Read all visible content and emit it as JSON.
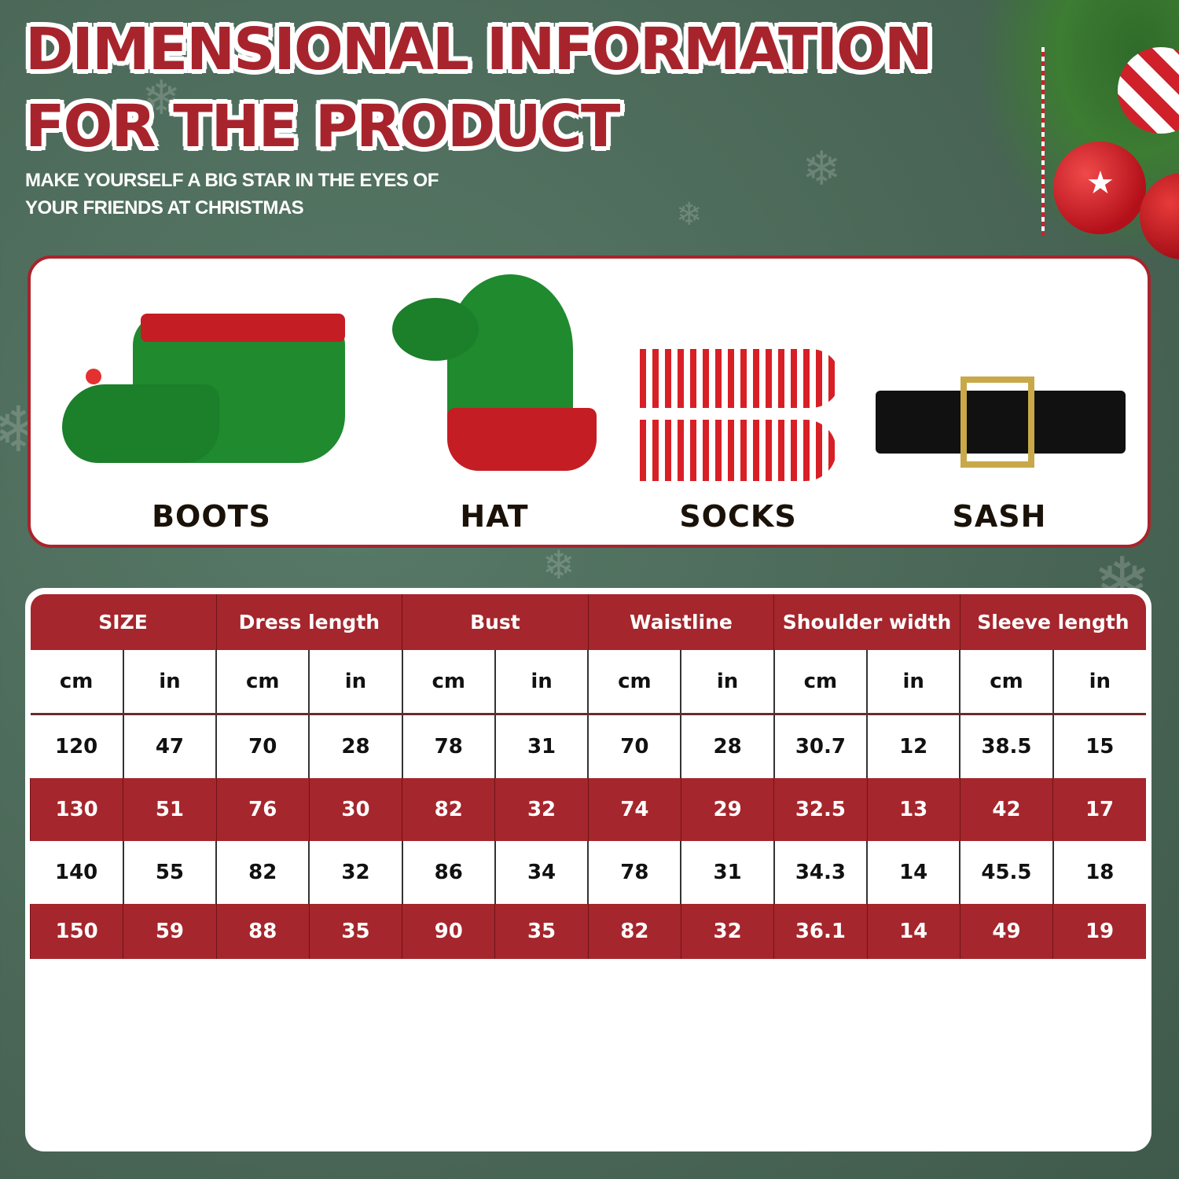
{
  "header": {
    "title_line1": "DIMENSIONAL INFORMATION",
    "title_line2": "FOR THE PRODUCT",
    "subtitle_line1": "MAKE YOURSELF A BIG STAR IN THE EYES OF",
    "subtitle_line2": "YOUR FRIENDS AT CHRISTMAS"
  },
  "colors": {
    "brand_red": "#a5262c",
    "background_green": "#4a6656"
  },
  "products": [
    {
      "label": "BOOTS",
      "icon": "elf-boots-image"
    },
    {
      "label": "HAT",
      "icon": "elf-hat-image"
    },
    {
      "label": "SOCKS",
      "icon": "striped-socks-image"
    },
    {
      "label": "SASH",
      "icon": "black-belt-image"
    }
  ],
  "size_table": {
    "headers": [
      "SIZE",
      "Dress length",
      "Bust",
      "Waistline",
      "Shoulder width",
      "Sleeve length"
    ],
    "units": [
      "cm",
      "in",
      "cm",
      "in",
      "cm",
      "in",
      "cm",
      "in",
      "cm",
      "in",
      "cm",
      "in"
    ],
    "rows": [
      [
        "120",
        "47",
        "70",
        "28",
        "78",
        "31",
        "70",
        "28",
        "30.7",
        "12",
        "38.5",
        "15"
      ],
      [
        "130",
        "51",
        "76",
        "30",
        "82",
        "32",
        "74",
        "29",
        "32.5",
        "13",
        "42",
        "17"
      ],
      [
        "140",
        "55",
        "82",
        "32",
        "86",
        "34",
        "78",
        "31",
        "34.3",
        "14",
        "45.5",
        "18"
      ],
      [
        "150",
        "59",
        "88",
        "35",
        "90",
        "35",
        "82",
        "32",
        "36.1",
        "14",
        "49",
        "19"
      ]
    ]
  }
}
